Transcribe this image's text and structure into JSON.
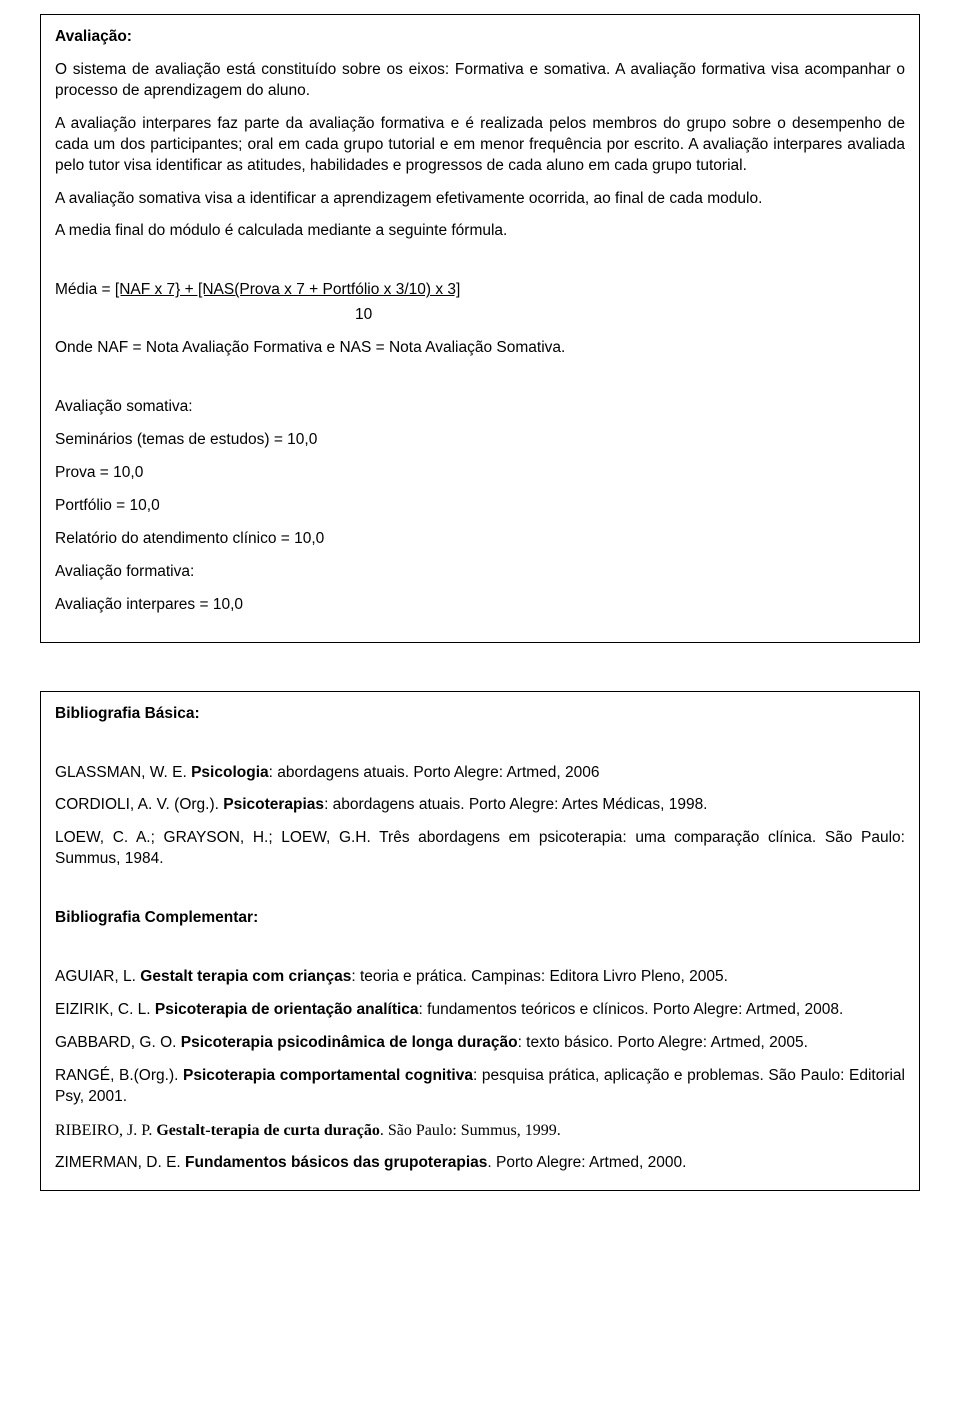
{
  "box1": {
    "heading": "Avaliação:",
    "p1": "O sistema de avaliação está constituído sobre os eixos: Formativa e somativa. A avaliação formativa visa acompanhar o processo de aprendizagem do aluno.",
    "p2": "A avaliação interpares faz parte da avaliação formativa e é realizada pelos membros do grupo sobre o desempenho de cada um dos participantes; oral em cada grupo tutorial e em menor frequência por escrito. A avaliação interpares avaliada pelo tutor visa identificar as atitudes, habilidades e progressos de cada aluno em cada grupo tutorial.",
    "p3": "A avaliação somativa visa a identificar a aprendizagem efetivamente ocorrida, ao final de cada modulo.",
    "p4": "A media final do módulo é calculada mediante a seguinte fórmula.",
    "formula_prefix": "Média = ",
    "formula_under": "[NAF x 7} + [NAS(Prova x 7 + Portfólio x 3/10) x 3]",
    "formula_denominator": "10",
    "p5": "Onde NAF = Nota Avaliação Formativa e NAS = Nota Avaliação Somativa.",
    "somativa_heading": "Avaliação somativa:",
    "s1": "Seminários (temas de estudos) = 10,0",
    "s2": "Prova = 10,0",
    "s3": "Portfólio = 10,0",
    "s4": "Relatório do atendimento clínico = 10,0",
    "formativa_heading": "Avaliação formativa:",
    "f1": "Avaliação interpares = 10,0"
  },
  "box2": {
    "heading1": "Bibliografia Básica:",
    "ref1_a": "GLASSMAN, W. E. ",
    "ref1_b": "Psicologia",
    "ref1_c": ": abordagens atuais. Porto Alegre: Artmed, 2006",
    "ref2_a": "CORDIOLI, A. V. (Org.). ",
    "ref2_b": "Psicoterapias",
    "ref2_c": ": abordagens atuais. Porto Alegre: Artes Médicas, 1998.",
    "ref3_a": "LOEW, C. A.; GRAYSON, H.; LOEW, G.H. Três abordagens em psicoterapia: uma comparação clínica. São Paulo: Summus, 1984.",
    "heading2": "Bibliografia Complementar:",
    "ref4_a": "AGUIAR, L. ",
    "ref4_b": "Gestalt terapia com crianças",
    "ref4_c": ": teoria e prática. Campinas: Editora Livro Pleno, 2005.",
    "ref5_a": "EIZIRIK, C. L. ",
    "ref5_b": "Psicoterapia de orientação analítica",
    "ref5_c": ": fundamentos teóricos e clínicos. Porto Alegre: Artmed, 2008.",
    "ref6_a": "GABBARD, G. O. ",
    "ref6_b": "Psicoterapia psicodinâmica de longa duração",
    "ref6_c": ": texto básico. Porto Alegre: Artmed, 2005.",
    "ref7_a": "RANGÉ, B.(Org.). ",
    "ref7_b": "Psicoterapia comportamental cognitiva",
    "ref7_c": ": pesquisa prática, aplicação e problemas. São Paulo: Editorial Psy, 2001.",
    "ref8_a": "RIBEIRO, J. P. ",
    "ref8_b": "Gestalt-terapia de curta duração",
    "ref8_c": ". São Paulo: Summus, 1999.",
    "ref9_a": "ZIMERMAN, D. E. ",
    "ref9_b": "Fundamentos básicos das grupoterapias",
    "ref9_c": ". Porto Alegre: Artmed, 2000."
  }
}
